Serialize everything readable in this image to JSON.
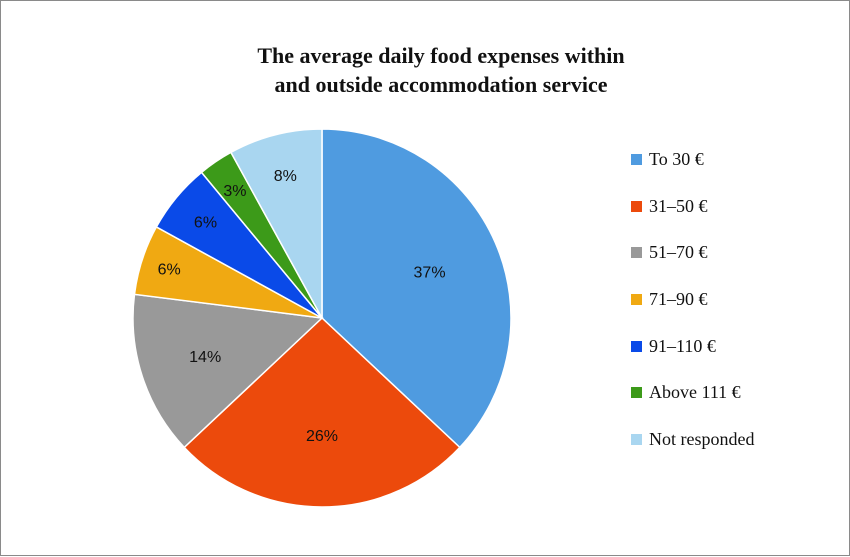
{
  "chart_data": {
    "type": "pie",
    "title_lines": [
      "The average daily food expenses within",
      "and outside accommodation service"
    ],
    "slices": [
      {
        "label": "To 30 €",
        "value": 37,
        "display": "37%",
        "color": "#4f9be0"
      },
      {
        "label": "31–50 €",
        "value": 26,
        "display": "26%",
        "color": "#ec4a0c"
      },
      {
        "label": "51–70 €",
        "value": 14,
        "display": "14%",
        "color": "#999999"
      },
      {
        "label": "71–90 €",
        "value": 6,
        "display": "6%",
        "color": "#f0a912"
      },
      {
        "label": "91–110 €",
        "value": 6,
        "display": "6%",
        "color": "#0a4ae8"
      },
      {
        "label": "Above 111 €",
        "value": 3,
        "display": "3%",
        "color": "#3c9a19"
      },
      {
        "label": "Not responded",
        "value": 8,
        "display": "8%",
        "color": "#a9d6f0"
      }
    ],
    "legend_position": "right",
    "start_angle": "12 o'clock",
    "direction": "clockwise"
  }
}
